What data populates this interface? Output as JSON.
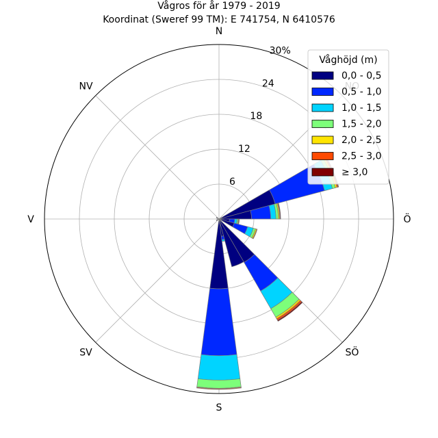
{
  "chart_data": {
    "type": "wind-rose",
    "title": "Vågros för år 1979 - 2019",
    "subtitle": "Koordinat (Sweref 99 TM): E 741754, N 6410576",
    "r_max": 30,
    "r_ticks": [
      6,
      12,
      18,
      24,
      30
    ],
    "r_tick_labels": [
      "6",
      "12",
      "18",
      "24",
      "30%"
    ],
    "direction_labels": [
      {
        "label": "N",
        "angle": 0
      },
      {
        "label": "NO",
        "angle": 45
      },
      {
        "label": "Ö",
        "angle": 90
      },
      {
        "label": "SÖ",
        "angle": 135
      },
      {
        "label": "S",
        "angle": 180
      },
      {
        "label": "SV",
        "angle": 225
      },
      {
        "label": "V",
        "angle": 270
      },
      {
        "label": "NV",
        "angle": 315
      }
    ],
    "legend": {
      "title": "Våghöjd (m)",
      "placement": "top-right"
    },
    "sector_width_deg": 15,
    "series": [
      {
        "name": "0,0 - 0,5",
        "color": "#000080"
      },
      {
        "name": "0,5 - 1,0",
        "color": "#0028ff"
      },
      {
        "name": "1,0 - 1,5",
        "color": "#00d4ff"
      },
      {
        "name": "1,5 - 2,0",
        "color": "#7dff7a"
      },
      {
        "name": "2,0 - 2,5",
        "color": "#ffe500"
      },
      {
        "name": "2,5 - 3,0",
        "color": "#ff4a00"
      },
      {
        "name": "≥ 3,0",
        "color": "#800000"
      }
    ],
    "sectors": [
      {
        "direction": 67.5,
        "values": [
          10.0,
          8.8,
          1.4,
          0.5,
          0.3,
          0.2,
          0.1
        ]
      },
      {
        "direction": 82.5,
        "values": [
          5.6,
          3.3,
          0.9,
          0.4,
          0.2,
          0.1,
          0.1
        ]
      },
      {
        "direction": 97.5,
        "values": [
          1.8,
          0.9,
          0.4,
          0.2,
          0.1,
          0.1,
          0.0
        ]
      },
      {
        "direction": 112.5,
        "values": [
          2.7,
          2.4,
          1.0,
          0.4,
          0.2,
          0.1,
          0.0
        ]
      },
      {
        "direction": 142.5,
        "values": [
          8.6,
          5.7,
          3.5,
          1.7,
          0.3,
          0.3,
          0.2
        ]
      },
      {
        "direction": 157.5,
        "values": [
          8.5,
          0.0,
          0.0,
          0.0,
          0.0,
          0.0,
          0.0
        ]
      },
      {
        "direction": 172.5,
        "values": [
          3.0,
          0.6,
          0.3,
          0.0,
          0.0,
          0.0,
          0.0
        ]
      },
      {
        "direction": 180.0,
        "values": [
          12.0,
          11.5,
          4.2,
          1.4,
          0.1,
          0.1,
          0.0
        ]
      },
      {
        "direction": 240.0,
        "values": [
          0.5,
          0.0,
          0.0,
          0.0,
          0.0,
          0.0,
          0.0
        ]
      },
      {
        "direction": 300.0,
        "values": [
          0.5,
          0.0,
          0.0,
          0.0,
          0.0,
          0.0,
          0.0
        ]
      }
    ]
  }
}
